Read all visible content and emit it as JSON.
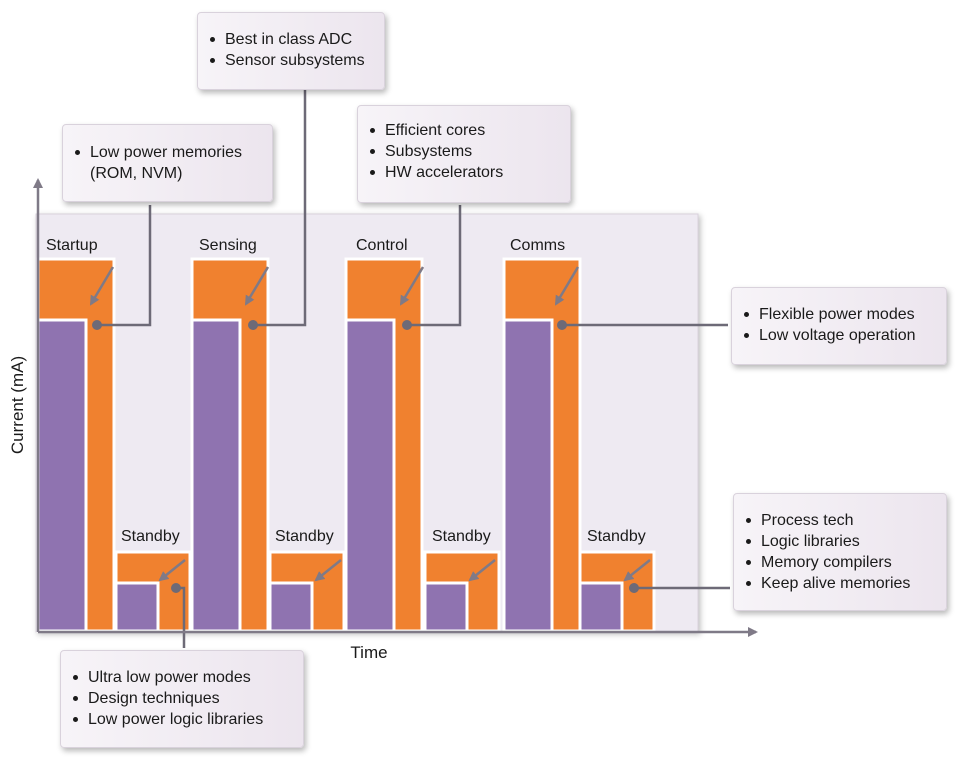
{
  "axes": {
    "ylabel": "Current (mA)",
    "xlabel": "Time"
  },
  "phases": [
    {
      "label": "Startup",
      "level": "high"
    },
    {
      "label": "Standby",
      "level": "low"
    },
    {
      "label": "Sensing",
      "level": "high"
    },
    {
      "label": "Standby",
      "level": "low"
    },
    {
      "label": "Control",
      "level": "high"
    },
    {
      "label": "Standby",
      "level": "low"
    },
    {
      "label": "Comms",
      "level": "high"
    },
    {
      "label": "Standby",
      "level": "low"
    }
  ],
  "colors": {
    "active": "#f0812f",
    "base": "#8f73b0",
    "background_panel": "#eeeaf2",
    "axis": "#7f7a87",
    "connector": "#6d6a77"
  },
  "callouts": {
    "adc": {
      "items": [
        "Best in class ADC",
        "Sensor subsystems"
      ]
    },
    "memories": {
      "line1": "Low power memories",
      "line2": "(ROM, NVM)"
    },
    "cores": {
      "items": [
        "Efficient cores",
        "Subsystems",
        "HW accelerators"
      ]
    },
    "power_modes": {
      "items": [
        "Flexible power modes",
        "Low voltage operation"
      ]
    },
    "process": {
      "items": [
        "Process tech",
        "Logic libraries",
        "Memory compilers",
        "Keep alive memories"
      ]
    },
    "ultra": {
      "items": [
        "Ultra low power modes",
        "Design techniques",
        "Low power logic libraries"
      ]
    }
  }
}
